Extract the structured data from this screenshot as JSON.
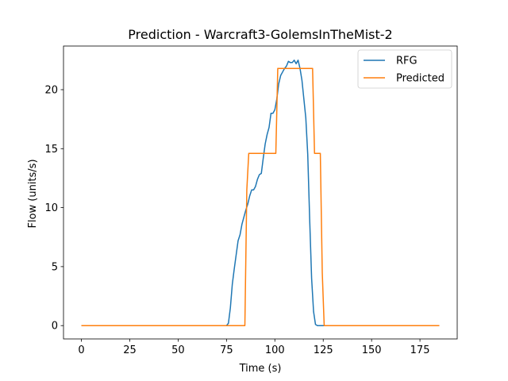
{
  "chart_data": {
    "type": "line",
    "title": "Prediction - Warcraft3-GolemsInTheMist-2",
    "xlabel": "Time (s)",
    "ylabel": "Flow (units/s)",
    "xlim": [
      -9.25,
      194.25
    ],
    "ylim": [
      -1.13,
      23.7
    ],
    "xticks": [
      0,
      25,
      50,
      75,
      100,
      125,
      150,
      175
    ],
    "yticks": [
      0,
      5,
      10,
      15,
      20
    ],
    "grid": false,
    "legend_position": "top-right",
    "series": [
      {
        "name": "RFG",
        "color": "#1f77b4",
        "x": [
          0,
          75,
          76,
          77,
          78,
          79,
          80,
          81,
          82,
          83,
          84,
          85,
          86,
          87,
          88,
          89,
          90,
          91,
          92,
          93,
          94,
          95,
          96,
          97,
          98,
          99,
          100,
          101,
          102,
          103,
          104,
          105,
          106,
          107,
          108,
          109,
          110,
          111,
          112,
          113,
          114,
          115,
          116,
          117,
          118,
          119,
          120,
          121,
          122,
          123,
          124,
          125,
          126,
          127,
          128,
          185
        ],
        "y": [
          0,
          0,
          0.2,
          1.5,
          3.5,
          4.8,
          6.0,
          7.2,
          7.7,
          8.6,
          9.2,
          9.8,
          10.3,
          11.0,
          11.5,
          11.5,
          11.8,
          12.4,
          12.8,
          12.9,
          14.2,
          15.4,
          16.2,
          16.8,
          18.0,
          18.0,
          18.3,
          19.2,
          20.5,
          21.2,
          21.5,
          21.8,
          22.0,
          22.4,
          22.3,
          22.3,
          22.5,
          22.2,
          22.5,
          21.8,
          20.8,
          19.2,
          17.6,
          14.5,
          9.0,
          4.0,
          1.2,
          0.1,
          0,
          0,
          0,
          0,
          0,
          0,
          0,
          0
        ]
      },
      {
        "name": "Predicted",
        "color": "#ff7f0e",
        "x": [
          0,
          84.5,
          85.5,
          86.5,
          99.5,
          100.5,
          101.5,
          118.5,
          119.5,
          120.5,
          122.5,
          123.5,
          124.5,
          125.5,
          185
        ],
        "y": [
          0,
          0,
          11.5,
          14.6,
          14.6,
          14.6,
          21.8,
          21.8,
          21.8,
          14.6,
          14.6,
          14.6,
          4.5,
          0,
          0
        ]
      }
    ]
  }
}
